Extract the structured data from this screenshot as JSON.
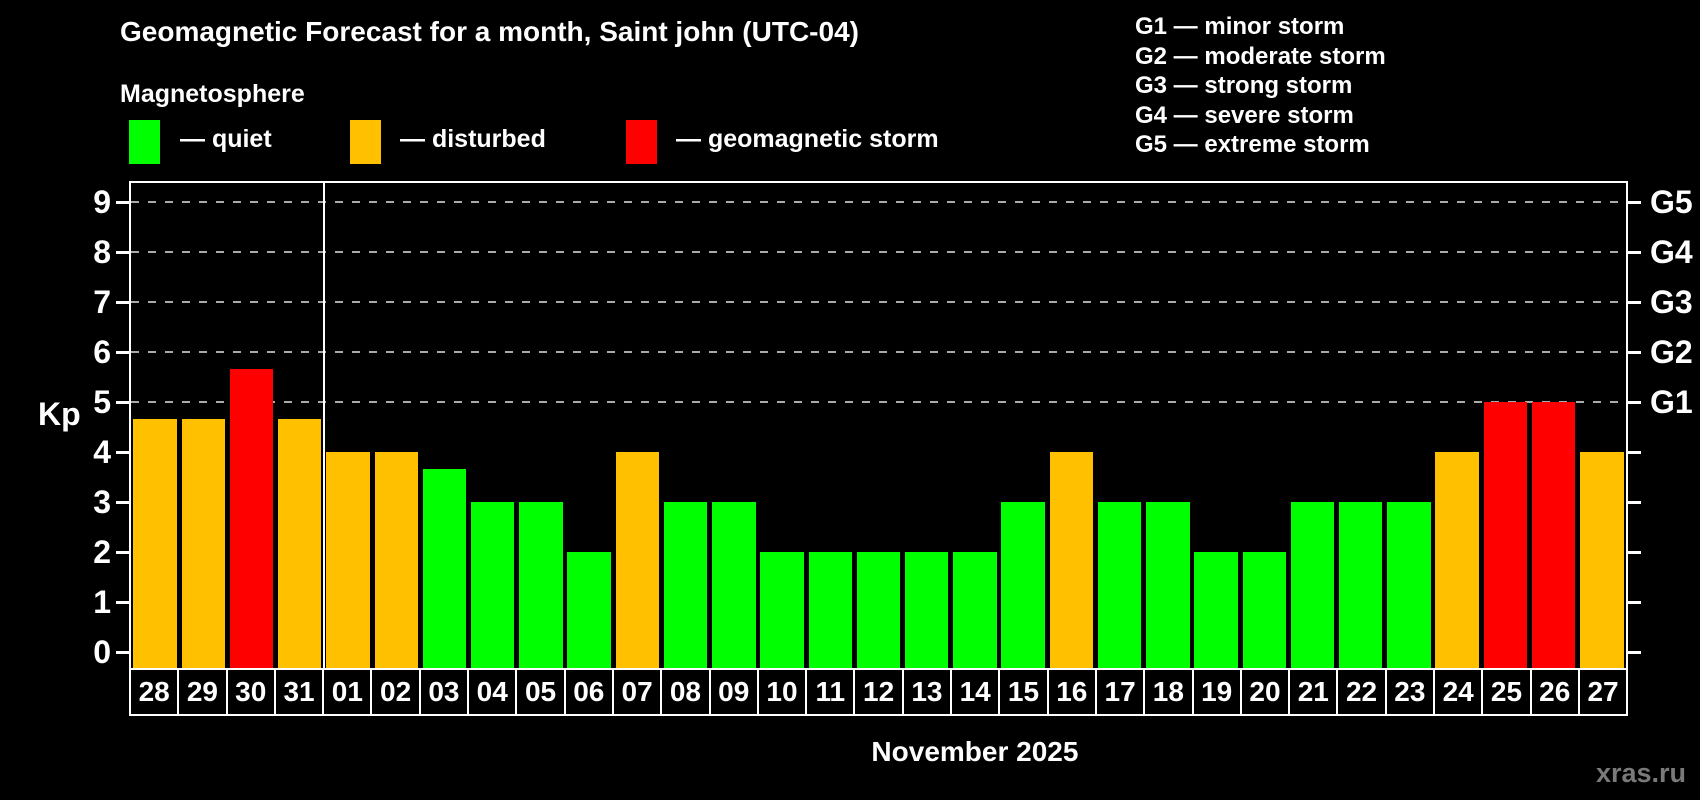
{
  "header": {
    "title": "Geomagnetic Forecast for a month, Saint john (UTC-04)",
    "subtitle": "Magnetosphere"
  },
  "legend": {
    "items": [
      {
        "level": "quiet",
        "label": "— quiet"
      },
      {
        "level": "disturbed",
        "label": "— disturbed"
      },
      {
        "level": "storm",
        "label": "— geomagnetic storm"
      }
    ]
  },
  "g_legend": {
    "items": [
      {
        "code": "G1",
        "label": "minor storm"
      },
      {
        "code": "G2",
        "label": "moderate storm"
      },
      {
        "code": "G3",
        "label": "strong storm"
      },
      {
        "code": "G4",
        "label": "severe storm"
      },
      {
        "code": "G5",
        "label": "extreme storm"
      }
    ],
    "dash": "—"
  },
  "colors": {
    "quiet": "#00ff00",
    "disturbed": "#ffc000",
    "storm": "#ff0000",
    "grid": "#aaaaaa",
    "axis": "#ffffff",
    "watermark": "#7a7a7a"
  },
  "axis": {
    "kp_label": "Kp",
    "left_ticks": [
      "0",
      "1",
      "2",
      "3",
      "4",
      "5",
      "6",
      "7",
      "8",
      "9"
    ],
    "right_labels": [
      {
        "text": "G1",
        "kp": 5
      },
      {
        "text": "G2",
        "kp": 6
      },
      {
        "text": "G3",
        "kp": 7
      },
      {
        "text": "G4",
        "kp": 8
      },
      {
        "text": "G5",
        "kp": 9
      }
    ],
    "grid_kps": [
      5,
      6,
      7,
      8,
      9
    ]
  },
  "footer": {
    "month_label": "November 2025",
    "watermark": "xras.ru"
  },
  "chart_data": {
    "type": "bar",
    "title": "Geomagnetic Forecast for a month, Saint john (UTC-04)",
    "xlabel": "November 2025",
    "ylabel": "Kp",
    "ylim": [
      0,
      9.7
    ],
    "grid": "dashed horizontal at Kp 5-9 (G1-G5)",
    "month_separator_after_index": 3,
    "bars": [
      {
        "date": "28",
        "kp": 4.67,
        "level": "disturbed"
      },
      {
        "date": "29",
        "kp": 4.67,
        "level": "disturbed"
      },
      {
        "date": "30",
        "kp": 5.67,
        "level": "storm"
      },
      {
        "date": "31",
        "kp": 4.67,
        "level": "disturbed"
      },
      {
        "date": "01",
        "kp": 4,
        "level": "disturbed"
      },
      {
        "date": "02",
        "kp": 4,
        "level": "disturbed"
      },
      {
        "date": "03",
        "kp": 3.67,
        "level": "quiet"
      },
      {
        "date": "04",
        "kp": 3,
        "level": "quiet"
      },
      {
        "date": "05",
        "kp": 3,
        "level": "quiet"
      },
      {
        "date": "06",
        "kp": 2,
        "level": "quiet"
      },
      {
        "date": "07",
        "kp": 4,
        "level": "disturbed"
      },
      {
        "date": "08",
        "kp": 3,
        "level": "quiet"
      },
      {
        "date": "09",
        "kp": 3,
        "level": "quiet"
      },
      {
        "date": "10",
        "kp": 2,
        "level": "quiet"
      },
      {
        "date": "11",
        "kp": 2,
        "level": "quiet"
      },
      {
        "date": "12",
        "kp": 2,
        "level": "quiet"
      },
      {
        "date": "13",
        "kp": 2,
        "level": "quiet"
      },
      {
        "date": "14",
        "kp": 2,
        "level": "quiet"
      },
      {
        "date": "15",
        "kp": 3,
        "level": "quiet"
      },
      {
        "date": "16",
        "kp": 4,
        "level": "disturbed"
      },
      {
        "date": "17",
        "kp": 3,
        "level": "quiet"
      },
      {
        "date": "18",
        "kp": 3,
        "level": "quiet"
      },
      {
        "date": "19",
        "kp": 2,
        "level": "quiet"
      },
      {
        "date": "20",
        "kp": 2,
        "level": "quiet"
      },
      {
        "date": "21",
        "kp": 3,
        "level": "quiet"
      },
      {
        "date": "22",
        "kp": 3,
        "level": "quiet"
      },
      {
        "date": "23",
        "kp": 3,
        "level": "quiet"
      },
      {
        "date": "24",
        "kp": 4,
        "level": "disturbed"
      },
      {
        "date": "25",
        "kp": 5,
        "level": "storm"
      },
      {
        "date": "26",
        "kp": 5,
        "level": "storm"
      },
      {
        "date": "27",
        "kp": 4,
        "level": "disturbed"
      }
    ]
  }
}
